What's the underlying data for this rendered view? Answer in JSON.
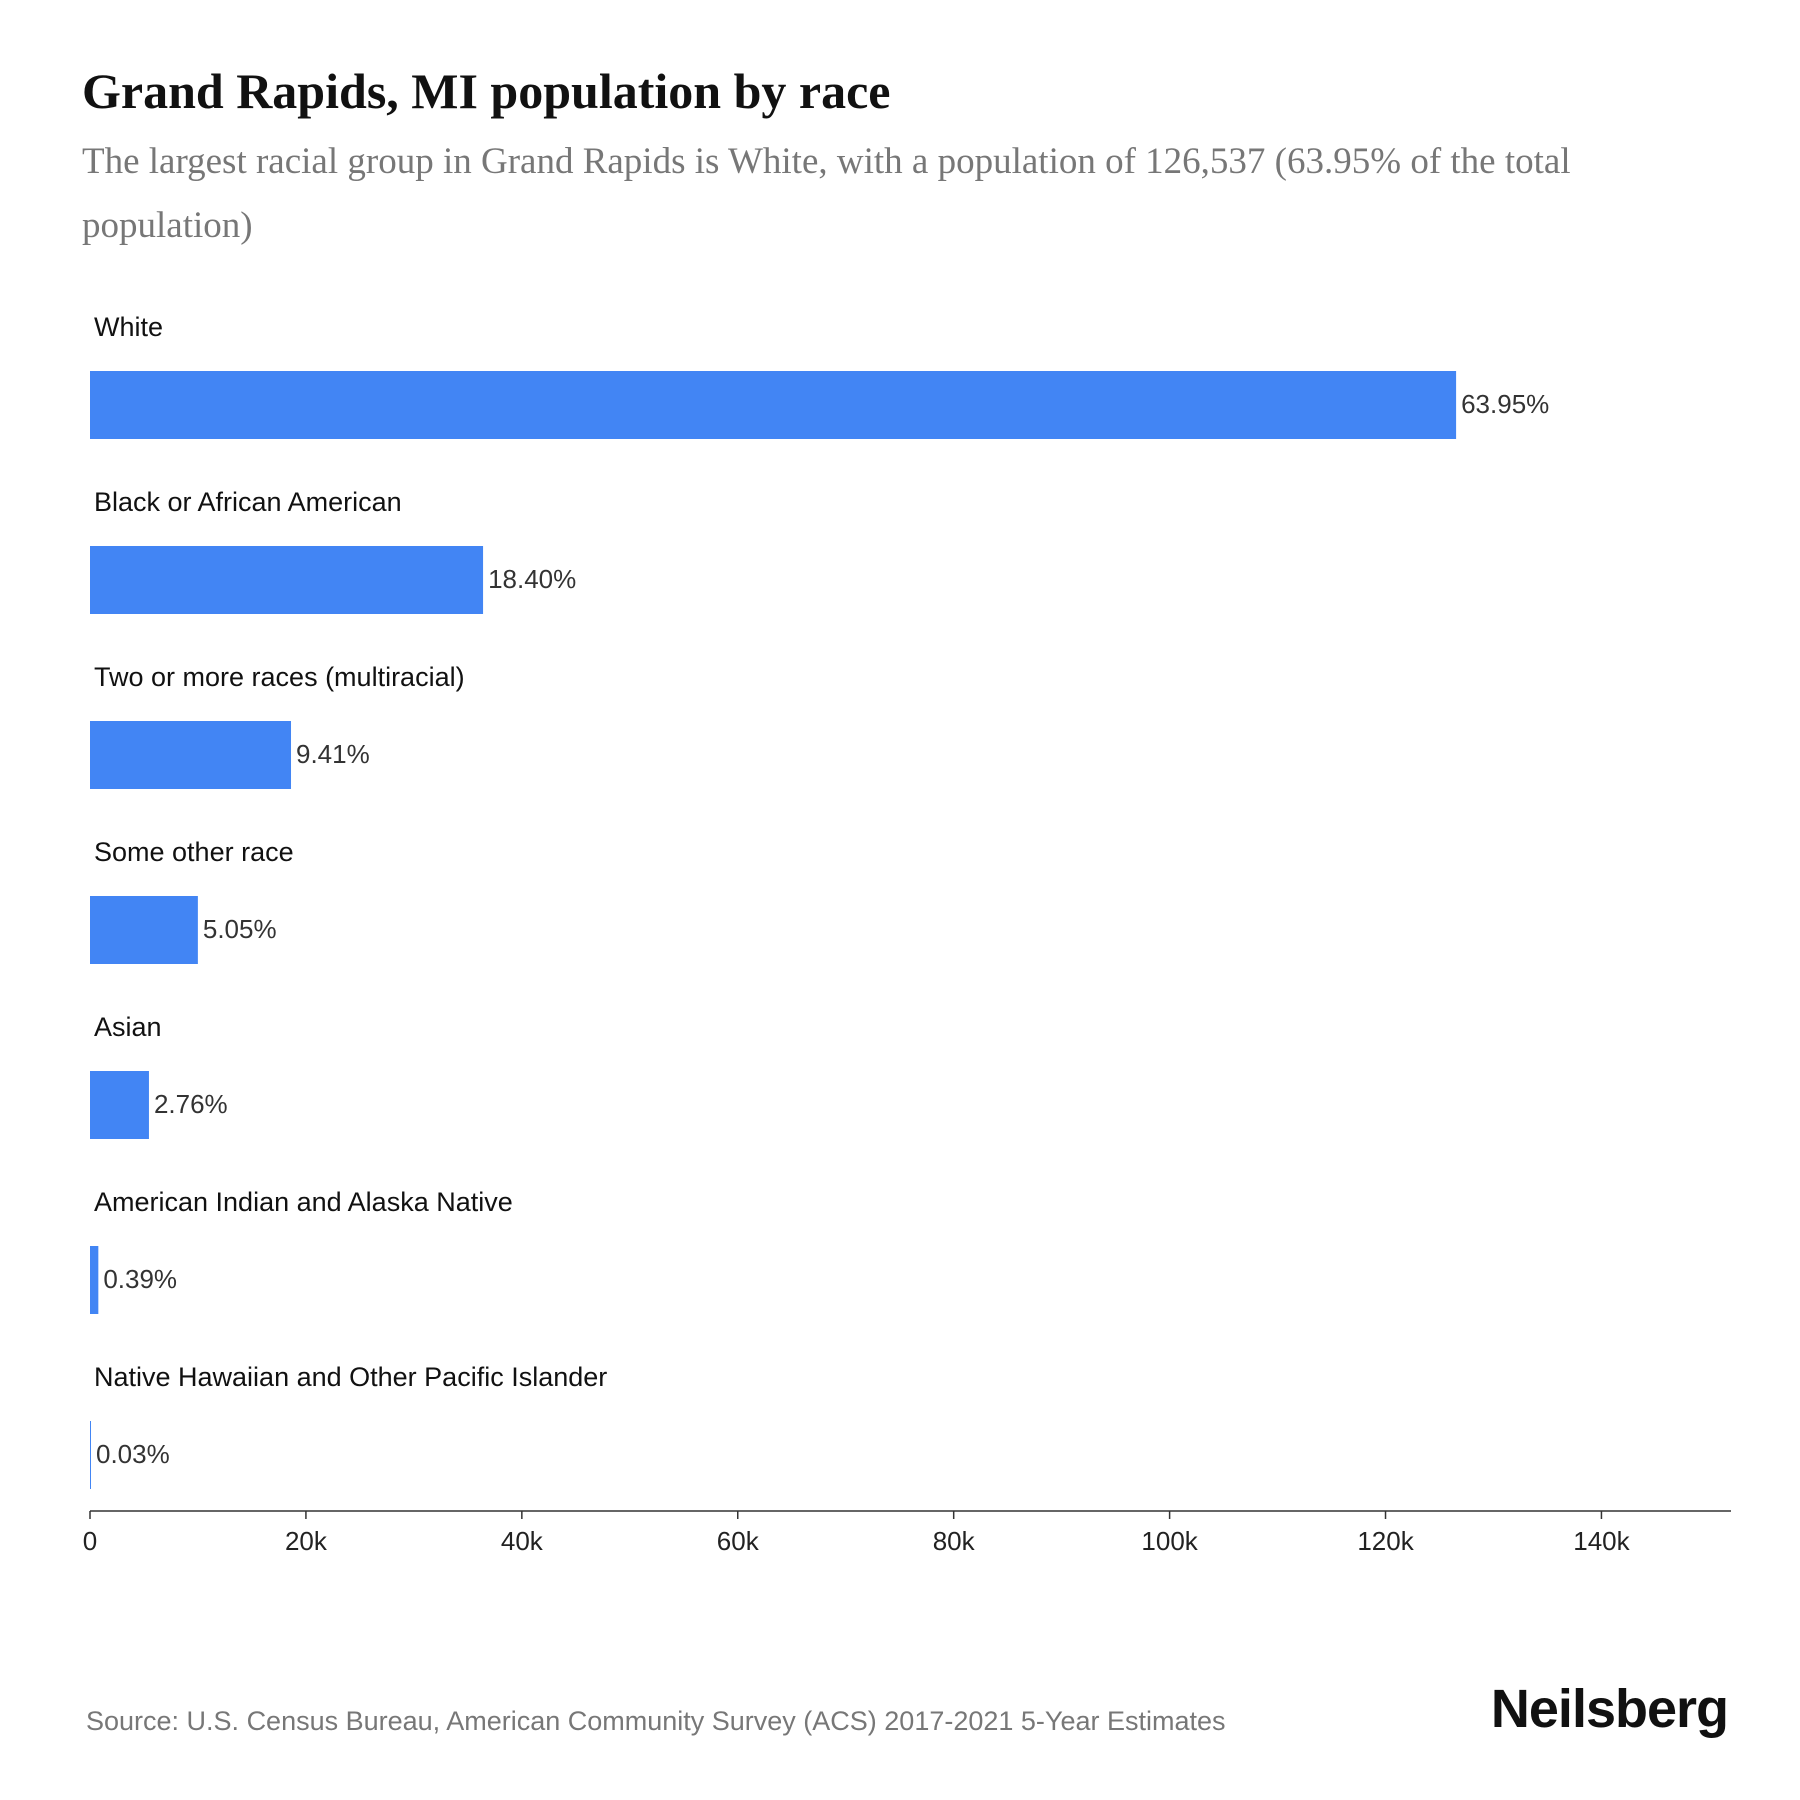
{
  "chart_data": {
    "type": "bar",
    "orientation": "horizontal",
    "title": "Grand Rapids, MI population by race",
    "subtitle": "The largest racial group in Grand Rapids is White, with a population of 126,537 (63.95% of the total population)",
    "categories": [
      "White",
      "Black or African American",
      "Two or more races (multiracial)",
      "Some other race",
      "Asian",
      "American Indian and Alaska Native",
      "Native Hawaiian and Other Pacific Islander"
    ],
    "values": [
      126537,
      36408,
      18619,
      9992,
      5461,
      772,
      59
    ],
    "value_labels": [
      "63.95%",
      "18.40%",
      "9.41%",
      "5.05%",
      "2.76%",
      "0.39%",
      "0.03%"
    ],
    "color": "#4285f4",
    "xlim": [
      0,
      152000
    ],
    "xticks": [
      0,
      {
        "value": 20000,
        "label": "20k"
      },
      {
        "value": 40000,
        "label": "40k"
      },
      {
        "value": 60000,
        "label": "60k"
      },
      {
        "value": 80000,
        "label": "80k"
      },
      {
        "value": 100000,
        "label": "100k"
      },
      {
        "value": 120000,
        "label": "120k"
      },
      {
        "value": 140000,
        "label": "140k"
      }
    ],
    "grid": false,
    "source": "Source: U.S. Census Bureau, American Community Survey (ACS) 2017-2021 5-Year Estimates",
    "brand": "Neilsberg"
  }
}
